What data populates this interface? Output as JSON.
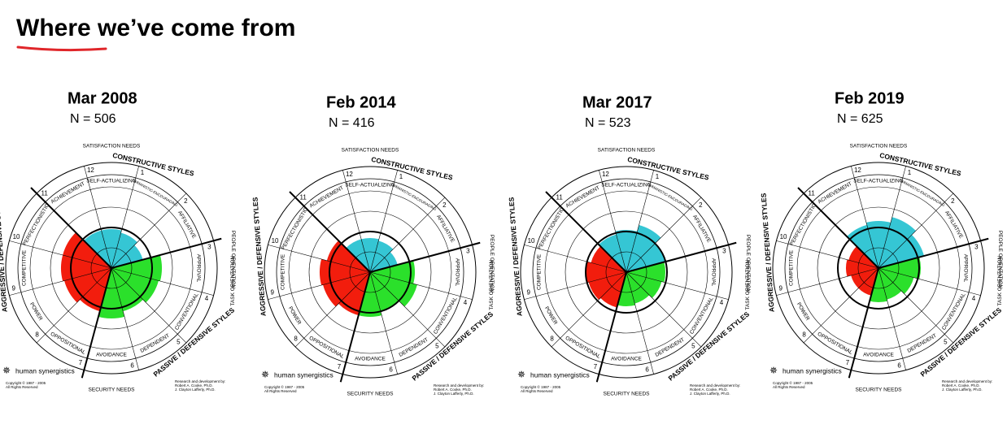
{
  "page_title": "Where we’ve come from",
  "chart_data": [
    {
      "type": "circumplex",
      "title": "Mar 2008",
      "subtitle": "N = 506",
      "categories": [
        "HUMANISTIC-ENCOURAGING",
        "AFFILIATIVE",
        "APPROVAL",
        "CONVENTIONAL",
        "DEPENDENT",
        "AVOIDANCE",
        "OPPOSITIONAL",
        "POWER",
        "COMPETITIVE",
        "PERFECTIONISTIC",
        "ACHIEVEMENT",
        "SELF-ACTUALIZING"
      ],
      "numbers": [
        1,
        2,
        3,
        4,
        5,
        6,
        7,
        8,
        9,
        10,
        11,
        12
      ],
      "values": [
        45,
        40,
        62,
        60,
        55,
        62,
        55,
        60,
        62,
        62,
        48,
        48
      ],
      "colors": [
        "#35c6d4",
        "#35c6d4",
        "#2be02b",
        "#2be02b",
        "#2be02b",
        "#2be02b",
        "#f21d0d",
        "#f21d0d",
        "#f21d0d",
        "#f21d0d",
        "#35c6d4",
        "#35c6d4"
      ],
      "rlim": [
        0,
        100
      ],
      "rticks": [
        25,
        50,
        75,
        100
      ],
      "bold_rtick": 50,
      "annotations": [
        "CONSTRUCTIVE STYLES",
        "PASSIVE / DEFENSIVE STYLES",
        "AGGRESSIVE / DEFENSIVE STYLES",
        "SATISFACTION NEEDS",
        "SECURITY NEEDS",
        "PEOPLE ORIENTATION",
        "TASK ORIENTATION"
      ],
      "logo": "human synergistics",
      "copyright": [
        "Copyright © 1987 - 2005",
        "All Rights Reserved"
      ],
      "credit": [
        "Research and development by:",
        "Robert A. Cooke, Ph.D.",
        "J. Clayton Lafferty, Ph.D."
      ]
    },
    {
      "type": "circumplex",
      "title": "Feb 2014",
      "subtitle": "N = 416",
      "categories": [
        "HUMANISTIC-ENCOURAGING",
        "AFFILIATIVE",
        "APPROVAL",
        "CONVENTIONAL",
        "DEPENDENT",
        "AVOIDANCE",
        "OPPOSITIONAL",
        "POWER",
        "COMPETITIVE",
        "PERFECTIONISTIC",
        "ACHIEVEMENT",
        "SELF-ACTUALIZING"
      ],
      "numbers": [
        1,
        2,
        3,
        4,
        5,
        6,
        7,
        8,
        9,
        10,
        11,
        12
      ],
      "values": [
        40,
        35,
        55,
        60,
        50,
        55,
        55,
        60,
        62,
        55,
        42,
        42
      ],
      "colors": [
        "#35c6d4",
        "#35c6d4",
        "#2be02b",
        "#2be02b",
        "#2be02b",
        "#2be02b",
        "#f21d0d",
        "#f21d0d",
        "#f21d0d",
        "#f21d0d",
        "#35c6d4",
        "#35c6d4"
      ],
      "rlim": [
        0,
        100
      ],
      "rticks": [
        25,
        50,
        75,
        100
      ],
      "bold_rtick": 50,
      "annotations": [
        "CONSTRUCTIVE STYLES",
        "PASSIVE / DEFENSIVE STYLES",
        "AGGRESSIVE / DEFENSIVE STYLES",
        "SATISFACTION NEEDS",
        "SECURITY NEEDS",
        "PEOPLE ORIENTATION",
        "TASK ORIENTATION"
      ],
      "logo": "human synergistics",
      "copyright": [
        "Copyright © 1987 - 2005",
        "All Rights Reserved"
      ],
      "credit": [
        "Research and development by:",
        "Robert A. Cooke, Ph.D.",
        "J. Clayton Lafferty, Ph.D."
      ]
    },
    {
      "type": "circumplex",
      "title": "Mar 2017",
      "subtitle": "N = 523",
      "categories": [
        "HUMANISTIC-ENCOURAGING",
        "AFFILIATIVE",
        "APPROVAL",
        "CONVENTIONAL",
        "DEPENDENT",
        "AVOIDANCE",
        "OPPOSITIONAL",
        "POWER",
        "COMPETITIVE",
        "PERFECTIONISTIC",
        "ACHIEVEMENT",
        "SELF-ACTUALIZING"
      ],
      "numbers": [
        1,
        2,
        3,
        4,
        5,
        6,
        7,
        8,
        9,
        10,
        11,
        12
      ],
      "values": [
        60,
        50,
        48,
        45,
        40,
        42,
        45,
        48,
        50,
        45,
        48,
        52
      ],
      "colors": [
        "#35c6d4",
        "#35c6d4",
        "#2be02b",
        "#2be02b",
        "#2be02b",
        "#2be02b",
        "#f21d0d",
        "#f21d0d",
        "#f21d0d",
        "#f21d0d",
        "#35c6d4",
        "#35c6d4"
      ],
      "rlim": [
        0,
        100
      ],
      "rticks": [
        25,
        50,
        75,
        100
      ],
      "bold_rtick": 50,
      "annotations": [
        "CONSTRUCTIVE STYLES",
        "PASSIVE / DEFENSIVE STYLES",
        "AGGRESSIVE / DEFENSIVE STYLES",
        "SATISFACTION NEEDS",
        "SECURITY NEEDS",
        "PEOPLE ORIENTATION",
        "TASK ORIENTATION"
      ],
      "logo": "human synergistics",
      "copyright": [
        "Copyright © 1987 - 2005",
        "All Rights Reserved"
      ],
      "credit": [
        "Research and development by:",
        "Robert A. Cooke, Ph.D.",
        "J. Clayton Lafferty, Ph.D."
      ]
    },
    {
      "type": "circumplex",
      "title": "Feb 2019",
      "subtitle": "N = 625",
      "categories": [
        "HUMANISTIC-ENCOURAGING",
        "AFFILIATIVE",
        "APPROVAL",
        "CONVENTIONAL",
        "DEPENDENT",
        "AVOIDANCE",
        "OPPOSITIONAL",
        "POWER",
        "COMPETITIVE",
        "PERFECTIONISTIC",
        "ACHIEVEMENT",
        "SELF-ACTUALIZING"
      ],
      "numbers": [
        1,
        2,
        3,
        4,
        5,
        6,
        7,
        8,
        9,
        10,
        11,
        12
      ],
      "values": [
        65,
        58,
        52,
        45,
        40,
        42,
        35,
        35,
        40,
        38,
        55,
        58
      ],
      "colors": [
        "#35c6d4",
        "#35c6d4",
        "#2be02b",
        "#2be02b",
        "#2be02b",
        "#2be02b",
        "#f21d0d",
        "#f21d0d",
        "#f21d0d",
        "#f21d0d",
        "#35c6d4",
        "#35c6d4"
      ],
      "rlim": [
        0,
        100
      ],
      "rticks": [
        25,
        50,
        75,
        100
      ],
      "bold_rtick": 50,
      "annotations": [
        "CONSTRUCTIVE STYLES",
        "PASSIVE / DEFENSIVE STYLES",
        "AGGRESSIVE / DEFENSIVE STYLES",
        "SATISFACTION NEEDS",
        "SECURITY NEEDS",
        "PEOPLE ORIENTATION",
        "TASK ORIENTATION"
      ],
      "logo": "human synergistics",
      "copyright": [
        "Copyright © 1987 - 2005",
        "All Rights Reserved"
      ],
      "credit": [
        "Research and development by:",
        "Robert A. Cooke, Ph.D.",
        "J. Clayton Lafferty, Ph.D."
      ]
    }
  ]
}
